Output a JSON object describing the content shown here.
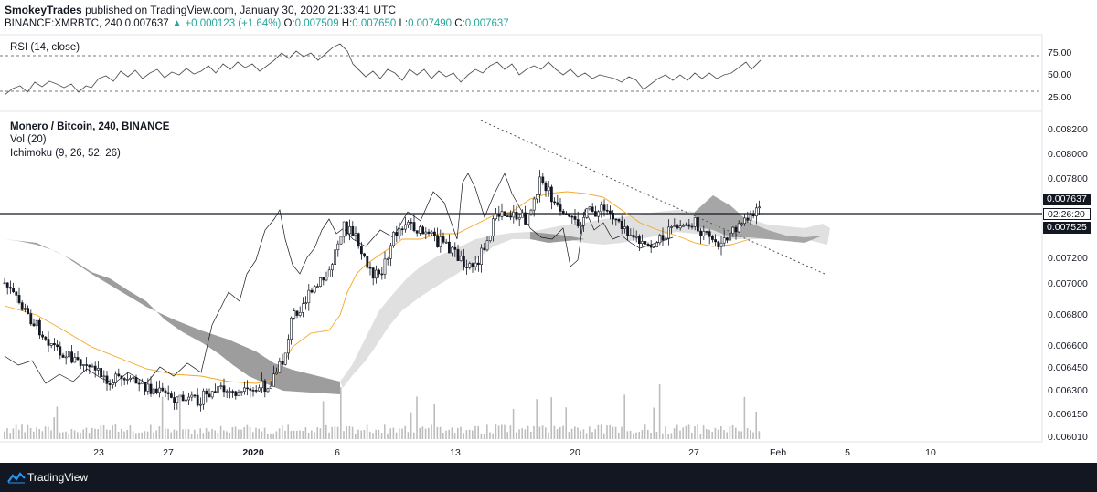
{
  "header": {
    "author": "SmokeyTrades",
    "published": "published on TradingView.com, January 30, 2020 21:33:41 UTC",
    "symbol": "BINANCE:XMRBTC, 240",
    "last": "0.007637",
    "change": "+0.000123 (+1.64%)",
    "ohlc": {
      "o_label": "O:",
      "o": "0.007509",
      "h_label": "H:",
      "h": "0.007650",
      "l_label": "L:",
      "l": "0.007490",
      "c_label": "C:",
      "c": "0.007637"
    }
  },
  "rsi": {
    "label": "RSI (14, close)",
    "ticks": [
      "75.00",
      "50.00",
      "25.00"
    ]
  },
  "main": {
    "title": "Monero / Bitcoin, 240, BINANCE",
    "vol_label": "Vol (20)",
    "ichimoku_label": "Ichimoku (9, 26, 52, 26)",
    "price_ticks": [
      "0.008200",
      "0.008000",
      "0.007800",
      "0.007200",
      "0.007000",
      "0.006800",
      "0.006600",
      "0.006450",
      "0.006300",
      "0.006150",
      "0.006010"
    ],
    "current_price": "0.007637",
    "countdown": "02:26:20",
    "line_price": "0.007525"
  },
  "x_axis": {
    "ticks": [
      "23",
      "27",
      "2020",
      "6",
      "13",
      "20",
      "27",
      "Feb",
      "5",
      "10"
    ]
  },
  "footer": {
    "brand": "TradingView"
  },
  "colors": {
    "up": "#26a69a",
    "candle": "#131722",
    "kijun": "#f5a623",
    "cloud_dark": "#8c8c8c",
    "cloud_light": "#d8d8d8",
    "footer_bg": "#131722"
  }
}
